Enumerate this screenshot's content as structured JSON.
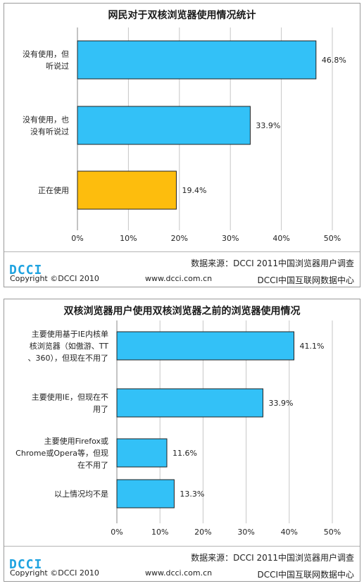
{
  "chart_data": [
    {
      "type": "bar",
      "orientation": "horizontal",
      "title": "网民对于双核浏览器使用情况统计",
      "categories": [
        [
          "没有使用，但",
          "听说过"
        ],
        [
          "没有使用，也",
          "没有听说过"
        ],
        [
          "正在使用"
        ]
      ],
      "values": [
        46.8,
        33.9,
        19.4
      ],
      "value_labels": [
        "46.8%",
        "33.9%",
        "19.4%"
      ],
      "bar_colors": [
        "#33c1f7",
        "#33c1f7",
        "#fdbd0d"
      ],
      "xlim": [
        0,
        50
      ],
      "xticks": [
        "0%",
        "10%",
        "20%",
        "30%",
        "40%",
        "50%"
      ],
      "grid": true
    },
    {
      "type": "bar",
      "orientation": "horizontal",
      "title": "双核浏览器用户使用双核浏览器之前的浏览器使用情况",
      "categories": [
        [
          "主要使用基于IE内核单",
          "核浏览器（如傲游、TT",
          "、360），但现在不用了"
        ],
        [
          "主要使用IE，但现在不",
          "用了"
        ],
        [
          "主要使用Firefox或",
          "Chrome或Opera等，但现",
          "在不用了"
        ],
        [
          "以上情况均不是"
        ]
      ],
      "values": [
        41.1,
        33.9,
        11.6,
        13.3
      ],
      "value_labels": [
        "41.1%",
        "33.9%",
        "11.6%",
        "13.3%"
      ],
      "bar_colors": [
        "#33c1f7",
        "#33c1f7",
        "#33c1f7",
        "#33c1f7"
      ],
      "xlim": [
        0,
        50
      ],
      "xticks": [
        "0%",
        "10%",
        "20%",
        "30%",
        "40%",
        "50%"
      ],
      "grid": true
    }
  ],
  "footer": {
    "source": "数据来源：DCCI 2011中国浏览器用户调查",
    "logo": "DCCI",
    "copyright": "Copyright ©DCCI 2010",
    "website": "www.dcci.com.cn",
    "org": "DCCI中国互联网数据中心"
  }
}
